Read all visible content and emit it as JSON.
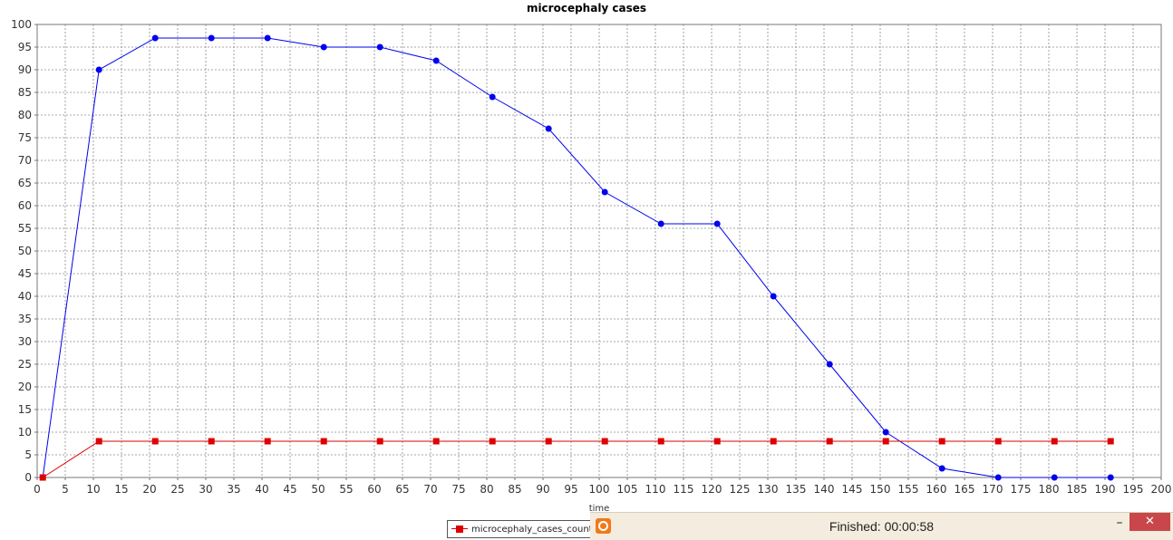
{
  "chart_data": {
    "type": "line",
    "title": "microcephaly cases",
    "xlabel": "time",
    "ylabel": "",
    "xlim": [
      0,
      200
    ],
    "ylim": [
      0,
      100
    ],
    "x_ticks": [
      0,
      5,
      10,
      15,
      20,
      25,
      30,
      35,
      40,
      45,
      50,
      55,
      60,
      65,
      70,
      75,
      80,
      85,
      90,
      95,
      100,
      105,
      110,
      115,
      120,
      125,
      130,
      135,
      140,
      145,
      150,
      155,
      160,
      165,
      170,
      175,
      180,
      185,
      190,
      195,
      200
    ],
    "y_ticks": [
      0,
      5,
      10,
      15,
      20,
      25,
      30,
      35,
      40,
      45,
      50,
      55,
      60,
      65,
      70,
      75,
      80,
      85,
      90,
      95,
      100
    ],
    "grid": true,
    "legend_position": "bottom-center",
    "series": [
      {
        "name": "",
        "color": "#0000ee",
        "marker": "circle",
        "x": [
          1,
          11,
          21,
          31,
          41,
          51,
          61,
          71,
          81,
          91,
          101,
          111,
          121,
          131,
          141,
          151,
          161,
          171,
          181,
          191
        ],
        "values": [
          0,
          90,
          97,
          97,
          97,
          95,
          95,
          92,
          84,
          77,
          63,
          56,
          56,
          40,
          25,
          10,
          2,
          0,
          0,
          0
        ]
      },
      {
        "name": "microcephaly_cases_count",
        "color": "#dd0000",
        "marker": "square",
        "x": [
          1,
          11,
          21,
          31,
          41,
          51,
          61,
          71,
          81,
          91,
          101,
          111,
          121,
          131,
          141,
          151,
          161,
          171,
          181,
          191
        ],
        "values": [
          0,
          8,
          8,
          8,
          8,
          8,
          8,
          8,
          8,
          8,
          8,
          8,
          8,
          8,
          8,
          8,
          8,
          8,
          8,
          8
        ]
      }
    ]
  },
  "legend": {
    "label": "microcephaly_cases_count"
  },
  "status_bar": {
    "text": "Finished:  00:00:58",
    "minimize_label": "–",
    "close_label": "✕",
    "app_icon": "app-ring-icon"
  }
}
